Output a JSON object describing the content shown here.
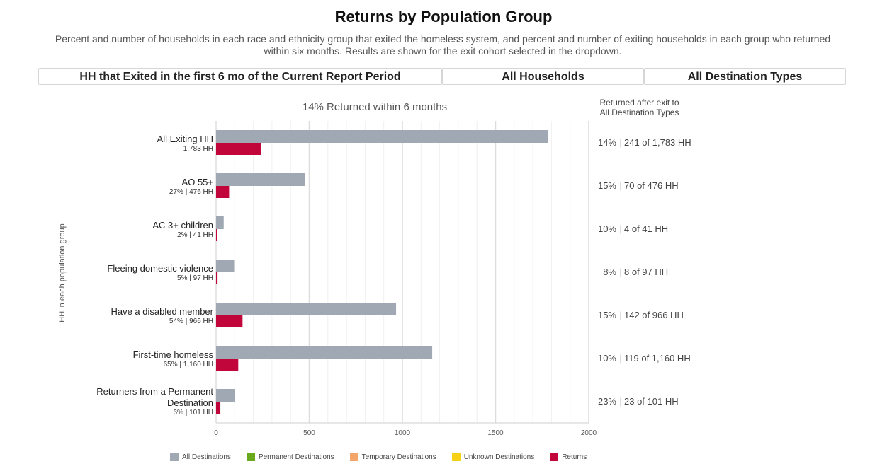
{
  "header": {
    "title": "Returns by Population Group",
    "subtitle": "Percent and number of households in each race and ethnicity group that exited the homeless system, and percent and number of exiting households in each group who returned within six months. Results are shown for the exit cohort selected in the dropdown."
  },
  "filters": {
    "cohort": "HH that Exited in the first 6 mo of the Current Report Period",
    "household_type": "All Households",
    "destination": "All Destination Types"
  },
  "colors": {
    "all_destinations": "#a0a9b3",
    "permanent": "#6aa81e",
    "temporary": "#f4a66a",
    "unknown": "#f7d117",
    "returns": "#c0063a"
  },
  "chart_data": {
    "type": "bar",
    "orientation": "horizontal",
    "subtitle": "14% Returned within 6 months",
    "ylabel": "HH in each population group",
    "side_header": [
      "Returned after exit to",
      "All Destination Types"
    ],
    "xlim": [
      0,
      2000
    ],
    "xticks": [
      0,
      500,
      1000,
      1500,
      2000
    ],
    "categories": [
      {
        "label": [
          "All Exiting HH"
        ],
        "sub": "1,783 HH",
        "exited": 1783,
        "returns": 241,
        "summary_pct": "14%",
        "summary_text": "241 of 1,783 HH"
      },
      {
        "label": [
          "AO 55+"
        ],
        "sub": "27% | 476 HH",
        "exited": 476,
        "returns": 70,
        "summary_pct": "15%",
        "summary_text": "70 of 476 HH"
      },
      {
        "label": [
          "AC 3+ children"
        ],
        "sub": "2% | 41 HH",
        "exited": 41,
        "returns": 4,
        "summary_pct": "10%",
        "summary_text": "4 of 41 HH"
      },
      {
        "label": [
          "Fleeing domestic violence"
        ],
        "sub": "5% | 97 HH",
        "exited": 97,
        "returns": 8,
        "summary_pct": "8%",
        "summary_text": "8 of 97 HH"
      },
      {
        "label": [
          "Have a disabled member"
        ],
        "sub": "54% | 966 HH",
        "exited": 966,
        "returns": 142,
        "summary_pct": "15%",
        "summary_text": "142 of 966 HH"
      },
      {
        "label": [
          "First-time homeless"
        ],
        "sub": "65% | 1,160 HH",
        "exited": 1160,
        "returns": 119,
        "summary_pct": "10%",
        "summary_text": "119 of 1,160 HH"
      },
      {
        "label": [
          "Returners from a Permanent",
          "Destination"
        ],
        "sub": "6% | 101 HH",
        "exited": 101,
        "returns": 23,
        "summary_pct": "23%",
        "summary_text": "23 of 101 HH"
      }
    ],
    "series": [
      {
        "name": "All Destinations",
        "key": "exited"
      },
      {
        "name": "Returns",
        "key": "returns"
      }
    ],
    "legend": {
      "position": "bottom",
      "items": [
        {
          "name": "All Destinations",
          "color_key": "all_destinations"
        },
        {
          "name": "Permanent Destinations",
          "color_key": "permanent"
        },
        {
          "name": "Temporary Destinations",
          "color_key": "temporary"
        },
        {
          "name": "Unknown Destinations",
          "color_key": "unknown"
        },
        {
          "name": "Returns",
          "color_key": "returns"
        }
      ]
    }
  }
}
